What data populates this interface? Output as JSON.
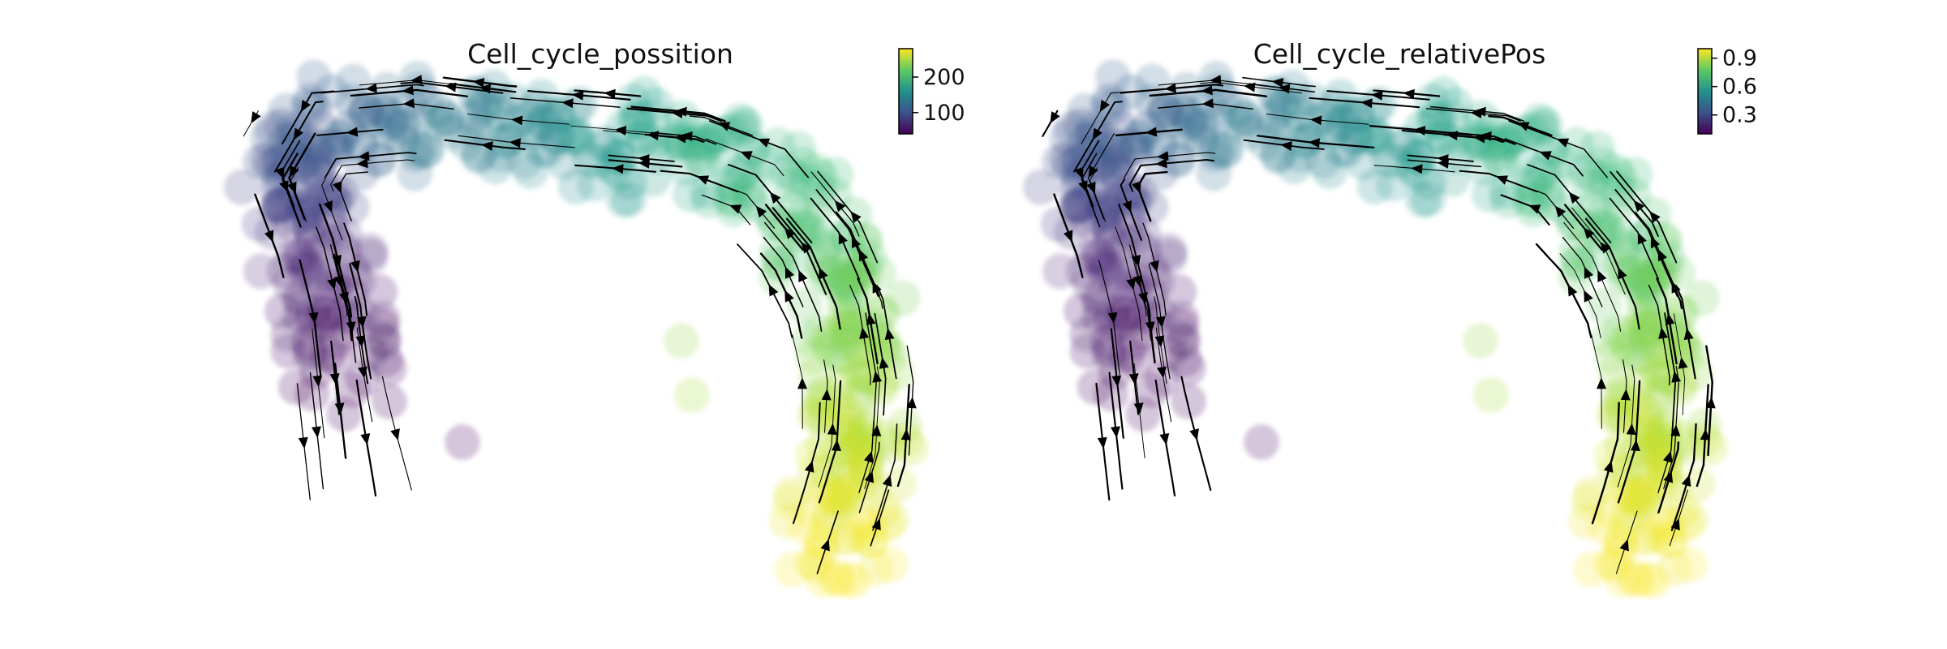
{
  "chart_data": [
    {
      "type": "scatter",
      "subtype": "embedding-with-velocity-streamlines",
      "title": "Cell_cycle_possition",
      "xlabel": "",
      "ylabel": "",
      "axes_visible": false,
      "grid": false,
      "legend": "none",
      "colormap": "viridis",
      "colorbar": {
        "placement": "top-right",
        "range": [
          40,
          280
        ],
        "ticks": [
          100,
          200
        ],
        "tick_labels": [
          "100",
          "200"
        ]
      }
    },
    {
      "type": "scatter",
      "subtype": "embedding-with-velocity-streamlines",
      "title": "Cell_cycle_relativePos",
      "xlabel": "",
      "ylabel": "",
      "axes_visible": false,
      "grid": false,
      "legend": "none",
      "colormap": "viridis",
      "colorbar": {
        "placement": "top-right",
        "range": [
          0.1,
          1.0
        ],
        "ticks": [
          0.3,
          0.6,
          0.9
        ],
        "tick_labels": [
          "0.3",
          "0.6",
          "0.9"
        ]
      }
    }
  ]
}
